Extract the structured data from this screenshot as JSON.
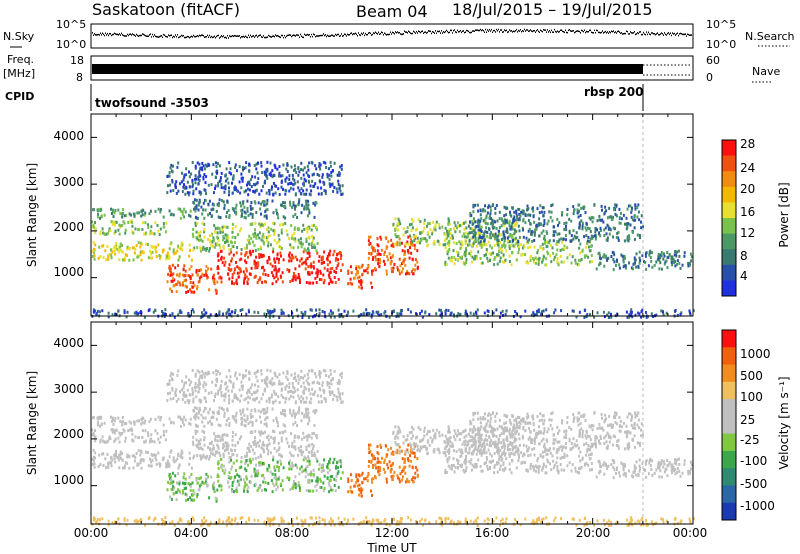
{
  "header": {
    "radar_title": "Saskatoon (fitACF)",
    "beam_label": "Beam 04",
    "date_range": "18/Jul/2015 – 19/Jul/2015"
  },
  "side_labels": {
    "nsky": "N.Sky",
    "nsearch": "N.Search",
    "freq_line1": "Freq.",
    "freq_line2": "[MHz]",
    "nave": "Nave",
    "cpid": "CPID"
  },
  "noise_panel": {
    "left_ticks": [
      "10^5",
      "10^0"
    ],
    "right_ticks": [
      "10^5",
      "10^0"
    ]
  },
  "freq_panel": {
    "left_ticks": [
      "18",
      "8"
    ],
    "right_ticks": [
      "60",
      "0"
    ]
  },
  "cpid_panel": {
    "mode_1": "twofsound -3503",
    "mode_2": "rbsp 200"
  },
  "power_panel": {
    "ylabel": "Slant Range [km]",
    "y_ticks": [
      "4000",
      "3000",
      "2000",
      "1000"
    ],
    "colorbar_label": "Power [dB]",
    "colorbar_ticks": [
      "28",
      "24",
      "20",
      "16",
      "12",
      "8",
      "4"
    ],
    "colors": [
      "#2030e0",
      "#2850a8",
      "#3a7a70",
      "#4d9966",
      "#78c24d",
      "#e8e030",
      "#f5b800",
      "#f08c10",
      "#f05010",
      "#ff1010"
    ]
  },
  "velocity_panel": {
    "ylabel": "Slant Range [km]",
    "y_ticks": [
      "4000",
      "3000",
      "2000",
      "1000"
    ],
    "colorbar_label": "Velocity [m s⁻¹]",
    "colorbar_ticks": [
      "1000",
      "500",
      "100",
      "25",
      "-25",
      "-100",
      "-500",
      "-1000"
    ],
    "colors": [
      "#1a3ab0",
      "#2a66a8",
      "#2e8a70",
      "#3aa84a",
      "#80c840",
      "#c0c0c0",
      "#c0c0c0",
      "#f0c060",
      "#f08c20",
      "#f06010",
      "#ff1010"
    ]
  },
  "time_axis": {
    "tick_labels": [
      "00:00",
      "04:00",
      "08:00",
      "12:00",
      "16:00",
      "20:00",
      "00:00"
    ],
    "xlabel": "Time UT"
  },
  "chart_data": {
    "type": "heatmap",
    "x_range_hours": [
      0,
      24
    ],
    "y_range_km": [
      180,
      4500
    ],
    "scatter_power": [
      {
        "t": [
          0,
          4
        ],
        "r": [
          1400,
          1800
        ],
        "level": 5
      },
      {
        "t": [
          0,
          3
        ],
        "r": [
          1950,
          2250
        ],
        "level": 4
      },
      {
        "t": [
          0,
          4
        ],
        "r": [
          2300,
          2500
        ],
        "level": 3
      },
      {
        "t": [
          3,
          5
        ],
        "r": [
          700,
          1300
        ],
        "level": 8
      },
      {
        "t": [
          5,
          10
        ],
        "r": [
          900,
          1600
        ],
        "level": 9
      },
      {
        "t": [
          4,
          9
        ],
        "r": [
          1600,
          2200
        ],
        "level": 4
      },
      {
        "t": [
          4,
          9
        ],
        "r": [
          2300,
          2700
        ],
        "level": 2
      },
      {
        "t": [
          10.2,
          11.2
        ],
        "r": [
          800,
          1300
        ],
        "level": 8
      },
      {
        "t": [
          11,
          13
        ],
        "r": [
          1100,
          1900
        ],
        "level": 8
      },
      {
        "t": [
          12,
          17
        ],
        "r": [
          1700,
          2300
        ],
        "level": 4
      },
      {
        "t": [
          14,
          20
        ],
        "r": [
          1300,
          1800
        ],
        "level": 4
      },
      {
        "t": [
          15,
          22
        ],
        "r": [
          1800,
          2600
        ],
        "level": 2
      },
      {
        "t": [
          20,
          24
        ],
        "r": [
          1200,
          1600
        ],
        "level": 2
      },
      {
        "t": [
          3,
          10
        ],
        "r": [
          2800,
          3500
        ],
        "level": 1
      },
      {
        "t": [
          0,
          24
        ],
        "r": [
          180,
          350
        ],
        "level": 1
      }
    ]
  }
}
